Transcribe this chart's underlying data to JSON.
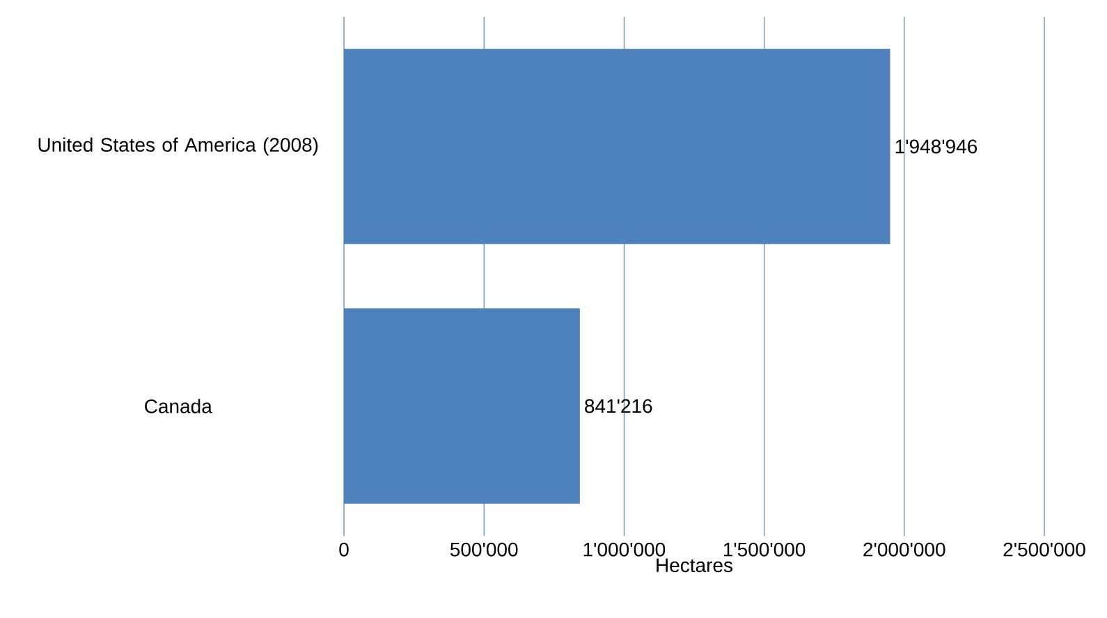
{
  "chart_data": {
    "type": "bar",
    "orientation": "horizontal",
    "categories": [
      "United States of America (2008)",
      "Canada"
    ],
    "values": [
      1948946,
      841216
    ],
    "value_labels": [
      "1'948'946",
      "841'216"
    ],
    "color": "#4f81bd",
    "xlabel": "Hectares",
    "xlim": [
      0,
      2500000
    ],
    "xticks": [
      0,
      {
        "value": 500000,
        "label": "500'000"
      },
      {
        "value": 1000000,
        "label": "1'000'000"
      },
      {
        "value": 1500000,
        "label": "1'500'000"
      },
      {
        "value": 2000000,
        "label": "2'000'000"
      },
      {
        "value": 2500000,
        "label": "2'500'000"
      }
    ],
    "grid": "x"
  }
}
